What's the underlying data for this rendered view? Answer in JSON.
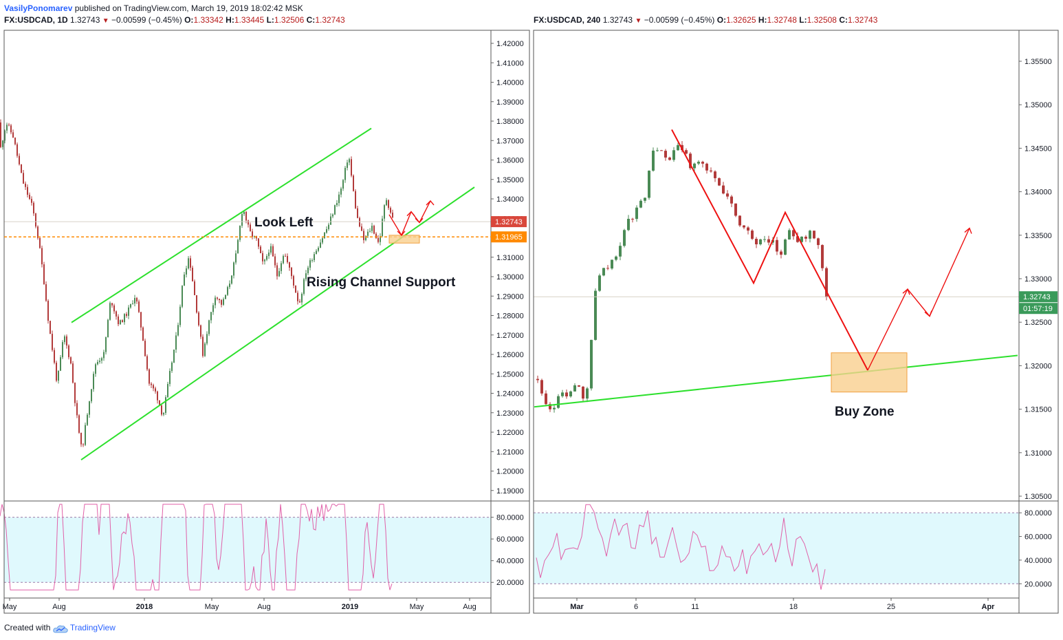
{
  "header": {
    "author": "VasilyPonomarev",
    "published_text": "published on TradingView.com, March 19, 2019 18:02:42 MSK"
  },
  "left_panel": {
    "symbol": "FX:USDCAD, 1D",
    "last": "1.32743",
    "change": "−0.00599 (−0.45%)",
    "o_label": "O:",
    "o": "1.33342",
    "h_label": "H:",
    "h": "1.33445",
    "l_label": "L:",
    "l": "1.32506",
    "c_label": "C:",
    "c": "1.32743"
  },
  "right_panel": {
    "symbol": "FX:USDCAD, 240",
    "last": "1.32743",
    "change": "−0.00599 (−0.45%)",
    "o_label": "O:",
    "o": "1.32625",
    "h_label": "H:",
    "h": "1.32748",
    "l_label": "L:",
    "l": "1.32508",
    "c_label": "C:",
    "c": "1.32743"
  },
  "footer": {
    "created_with": "Created with",
    "brand": "TradingView"
  },
  "colors": {
    "up": "#4a8a55",
    "down": "#b23a3a",
    "channel": "#2de02d",
    "arrow": "#ee1111",
    "zone_fill": "#f9cf8e",
    "zone_stroke": "#f0a040",
    "level_line": "#ff8a00",
    "rsi_fill": "#e0f9fd",
    "rsi_line": "#e060a8",
    "price_tag": "#d9473b",
    "level_tag": "#ff8a00",
    "right_tag": "#3a9a5a"
  },
  "chart_data": [
    {
      "type": "candlestick",
      "title": "FX:USDCAD, 1D",
      "ylim": [
        1.185,
        1.425
      ],
      "y_ticks": [
        "1.42000",
        "1.41000",
        "1.40000",
        "1.39000",
        "1.38000",
        "1.37000",
        "1.36000",
        "1.35000",
        "1.34000",
        "1.33000",
        "1.32000",
        "1.31000",
        "1.30000",
        "1.29000",
        "1.28000",
        "1.27000",
        "1.26000",
        "1.25000",
        "1.24000",
        "1.23000",
        "1.22000",
        "1.21000",
        "1.20000",
        "1.19000"
      ],
      "x_ticks": [
        "May",
        "Aug",
        "2018",
        "May",
        "Aug",
        "2019",
        "May",
        "Aug"
      ],
      "price_path": [
        [
          0,
          1.365
        ],
        [
          8,
          1.378
        ],
        [
          18,
          1.371
        ],
        [
          32,
          1.348
        ],
        [
          46,
          1.335
        ],
        [
          55,
          1.318
        ],
        [
          62,
          1.3
        ],
        [
          70,
          1.275
        ],
        [
          82,
          1.245
        ],
        [
          92,
          1.27
        ],
        [
          102,
          1.255
        ],
        [
          110,
          1.23
        ],
        [
          118,
          1.21
        ],
        [
          128,
          1.235
        ],
        [
          138,
          1.255
        ],
        [
          150,
          1.26
        ],
        [
          160,
          1.288
        ],
        [
          172,
          1.275
        ],
        [
          184,
          1.281
        ],
        [
          196,
          1.29
        ],
        [
          206,
          1.27
        ],
        [
          216,
          1.245
        ],
        [
          226,
          1.24
        ],
        [
          236,
          1.228
        ],
        [
          246,
          1.25
        ],
        [
          256,
          1.27
        ],
        [
          266,
          1.3
        ],
        [
          274,
          1.31
        ],
        [
          282,
          1.29
        ],
        [
          294,
          1.26
        ],
        [
          302,
          1.275
        ],
        [
          312,
          1.29
        ],
        [
          322,
          1.285
        ],
        [
          332,
          1.295
        ],
        [
          342,
          1.31
        ],
        [
          352,
          1.335
        ],
        [
          362,
          1.322
        ],
        [
          372,
          1.318
        ],
        [
          382,
          1.305
        ],
        [
          392,
          1.315
        ],
        [
          402,
          1.3
        ],
        [
          412,
          1.312
        ],
        [
          422,
          1.301
        ],
        [
          434,
          1.285
        ],
        [
          444,
          1.302
        ],
        [
          454,
          1.31
        ],
        [
          466,
          1.318
        ],
        [
          476,
          1.325
        ],
        [
          486,
          1.335
        ],
        [
          496,
          1.345
        ],
        [
          506,
          1.362
        ],
        [
          512,
          1.345
        ],
        [
          518,
          1.33
        ],
        [
          528,
          1.318
        ],
        [
          540,
          1.325
        ],
        [
          550,
          1.316
        ],
        [
          560,
          1.34
        ],
        [
          572,
          1.327
        ]
      ],
      "current_price": "1.32743",
      "level_price": "1.31965",
      "rising_channel": {
        "upper": [
          [
            104,
            1.276
          ],
          [
            540,
            1.375
          ]
        ],
        "lower": [
          [
            118,
            1.206
          ],
          [
            690,
            1.345
          ]
        ]
      },
      "buy_zone": {
        "price_high": 1.3205,
        "price_low": 1.3165
      },
      "annotations": [
        "Look Left",
        "Rising Channel Support"
      ],
      "indicator": {
        "name": "RSI",
        "ylim": [
          10,
          95
        ],
        "ticks": [
          "80.0000",
          "60.0000",
          "40.0000",
          "20.0000"
        ],
        "bands": [
          80,
          20
        ]
      }
    },
    {
      "type": "candlestick",
      "title": "FX:USDCAD, 240",
      "ylim": [
        1.304,
        1.358
      ],
      "y_ticks": [
        "1.35500",
        "1.35000",
        "1.34500",
        "1.34000",
        "1.33500",
        "1.33000",
        "1.32500",
        "1.32000",
        "1.31500",
        "1.31000",
        "1.30500"
      ],
      "x_ticks": [
        "Mar",
        "6",
        "11",
        "18",
        "25",
        "Apr"
      ],
      "price_path": [
        [
          780,
          1.318
        ],
        [
          792,
          1.315
        ],
        [
          800,
          1.314
        ],
        [
          812,
          1.3165
        ],
        [
          826,
          1.316
        ],
        [
          838,
          1.3175
        ],
        [
          850,
          1.315
        ],
        [
          856,
          1.32
        ],
        [
          862,
          1.328
        ],
        [
          874,
          1.3305
        ],
        [
          886,
          1.331
        ],
        [
          898,
          1.333
        ],
        [
          910,
          1.336
        ],
        [
          922,
          1.337
        ],
        [
          936,
          1.339
        ],
        [
          946,
          1.344
        ],
        [
          958,
          1.344
        ],
        [
          970,
          1.343
        ],
        [
          980,
          1.345
        ],
        [
          994,
          1.344
        ],
        [
          1004,
          1.342
        ],
        [
          1016,
          1.343
        ],
        [
          1030,
          1.342
        ],
        [
          1044,
          1.34
        ],
        [
          1058,
          1.339
        ],
        [
          1072,
          1.336
        ],
        [
          1086,
          1.335
        ],
        [
          1096,
          1.333
        ],
        [
          1108,
          1.334
        ],
        [
          1120,
          1.334
        ],
        [
          1132,
          1.332
        ],
        [
          1144,
          1.335
        ],
        [
          1156,
          1.334
        ],
        [
          1168,
          1.334
        ],
        [
          1180,
          1.335
        ],
        [
          1192,
          1.332
        ],
        [
          1200,
          1.3275
        ]
      ],
      "current_price": "1.32743",
      "countdown": "01:57:19",
      "trendline": [
        [
          777,
          1.3148
        ],
        [
          1480,
          1.3207
        ]
      ],
      "buy_zone": {
        "price_high": 1.321,
        "price_low": 1.3165
      },
      "annotations": [
        "Buy Zone"
      ],
      "indicator": {
        "name": "RSI",
        "ylim": [
          12,
          90
        ],
        "ticks": [
          "80.0000",
          "60.0000",
          "40.0000",
          "20.0000"
        ],
        "bands": [
          80,
          20
        ]
      }
    }
  ]
}
